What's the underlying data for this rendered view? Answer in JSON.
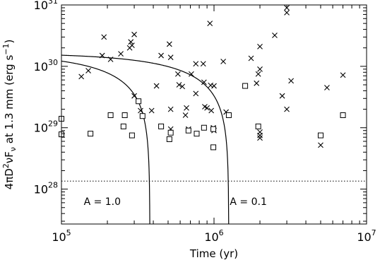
{
  "chart_data": {
    "type": "scatter",
    "xlabel": "Time (yr)",
    "ylabel": {
      "prefix": "4πD",
      "sup1": "2",
      "mid": "νF",
      "sub": "ν",
      "suffix": " at 1.3 mm (erg s",
      "sup2": "−1",
      "close": ")"
    },
    "x_scale": "log",
    "y_scale": "log",
    "xlim": [
      100000,
      10000000
    ],
    "ylim": [
      2.7e+27,
      1e+31
    ],
    "x_ticks": [
      {
        "base": "10",
        "exp": "5",
        "value": 100000
      },
      {
        "base": "10",
        "exp": "6",
        "value": 1000000
      },
      {
        "base": "10",
        "exp": "7",
        "value": 10000000
      }
    ],
    "y_ticks": [
      {
        "base": "10",
        "exp": "28",
        "value": 1e+28
      },
      {
        "base": "10",
        "exp": "29",
        "value": 1e+29
      },
      {
        "base": "10",
        "exp": "30",
        "value": 1e+30
      },
      {
        "base": "10",
        "exp": "31",
        "value": 1e+31
      }
    ],
    "grid": false,
    "legend": "none",
    "series": [
      {
        "marker": "cross",
        "points": [
          [
            135000,
            6.8e+29
          ],
          [
            150000,
            8.5e+29
          ],
          [
            185000,
            1.5e+30
          ],
          [
            190000,
            3e+30
          ],
          [
            210000,
            1.3e+30
          ],
          [
            245000,
            1.6e+30
          ],
          [
            280000,
            2e+30
          ],
          [
            285000,
            2.5e+30
          ],
          [
            290000,
            2.2e+30
          ],
          [
            300000,
            3.3e+30
          ],
          [
            300000,
            3.3e+29
          ],
          [
            330000,
            1.9e+29
          ],
          [
            390000,
            1.9e+29
          ],
          [
            420000,
            4.8e+29
          ],
          [
            450000,
            1.5e+30
          ],
          [
            510000,
            2.3e+30
          ],
          [
            520000,
            1.4e+30
          ],
          [
            520000,
            9.5e+28
          ],
          [
            520000,
            2e+29
          ],
          [
            580000,
            7.5e+29
          ],
          [
            590000,
            5e+29
          ],
          [
            620000,
            4.7e+29
          ],
          [
            650000,
            1.6e+29
          ],
          [
            660000,
            2.1e+29
          ],
          [
            680000,
            9.5e+28
          ],
          [
            710000,
            7.5e+29
          ],
          [
            760000,
            1.1e+30
          ],
          [
            760000,
            3.6e+29
          ],
          [
            850000,
            1.1e+30
          ],
          [
            860000,
            5.5e+29
          ],
          [
            870000,
            2.2e+29
          ],
          [
            900000,
            2.1e+29
          ],
          [
            940000,
            5e+30
          ],
          [
            950000,
            4.9e+29
          ],
          [
            960000,
            1.9e+29
          ],
          [
            990000,
            1e+29
          ],
          [
            1000000,
            9e+28
          ],
          [
            1000000,
            4.8e+29
          ],
          [
            1150000,
            1.2e+30
          ],
          [
            1200000,
            1.8e+29
          ],
          [
            1750000,
            1.35e+30
          ],
          [
            1900000,
            5.3e+29
          ],
          [
            1950000,
            7.5e+29
          ],
          [
            2000000,
            2.1e+30
          ],
          [
            2000000,
            9e+29
          ],
          [
            2000000,
            8.5e+28
          ],
          [
            2000000,
            7.5e+28
          ],
          [
            2000000,
            6.8e+28
          ],
          [
            2500000,
            3.2e+30
          ],
          [
            2800000,
            3.3e+29
          ],
          [
            3000000,
            2e+29
          ],
          [
            3000000,
            7.5e+30
          ],
          [
            3000000,
            9e+30
          ],
          [
            3200000,
            5.8e+29
          ],
          [
            5000000,
            5.2e+28
          ],
          [
            5500000,
            4.5e+29
          ],
          [
            7000000,
            7.2e+29
          ]
        ]
      },
      {
        "marker": "square",
        "points": [
          [
            100000,
            1.4e+29
          ],
          [
            100000,
            7.8e+28
          ],
          [
            155000,
            8e+28
          ],
          [
            210000,
            1.6e+29
          ],
          [
            255000,
            1.05e+29
          ],
          [
            260000,
            1.6e+29
          ],
          [
            290000,
            7.5e+28
          ],
          [
            320000,
            2.7e+29
          ],
          [
            340000,
            1.55e+29
          ],
          [
            450000,
            1.05e+29
          ],
          [
            510000,
            6.5e+28
          ],
          [
            520000,
            8.3e+28
          ],
          [
            680000,
            9e+28
          ],
          [
            770000,
            8e+28
          ],
          [
            860000,
            1e+29
          ],
          [
            990000,
            4.8e+28
          ],
          [
            990000,
            9.5e+28
          ],
          [
            1250000,
            1.6e+29
          ],
          [
            1600000,
            4.8e+29
          ],
          [
            1950000,
            1.05e+29
          ],
          [
            5000000,
            7.5e+28
          ],
          [
            7000000,
            1.6e+29
          ]
        ]
      }
    ],
    "curves": [
      {
        "label": "A = 1.0",
        "L0": 1.65e+30,
        "t0": 380000
      },
      {
        "label": "A = 0.1",
        "L0": 1.65e+30,
        "t0": 1250000
      }
    ],
    "threshold": {
      "value": 1.35e+28,
      "style": "dotted"
    },
    "annotations": [
      {
        "text": "A = 1.0",
        "x": 140000,
        "y": 5.5e+27
      },
      {
        "text": "A = 0.1",
        "x": 1270000,
        "y": 5.5e+27
      }
    ]
  }
}
